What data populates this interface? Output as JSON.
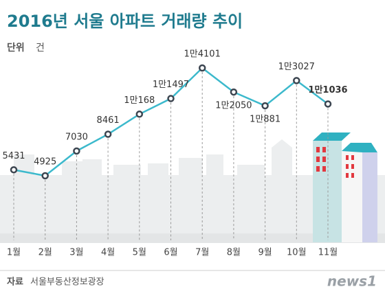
{
  "chart_data": {
    "type": "line",
    "title": "2016년 서울 아파트 거래량 추이",
    "unit_label": "단위",
    "unit": "건",
    "categories": [
      "1월",
      "2월",
      "3월",
      "4월",
      "5월",
      "6월",
      "7월",
      "8월",
      "9월",
      "10월",
      "11월"
    ],
    "values": [
      5431,
      4925,
      7030,
      8461,
      10168,
      11497,
      14101,
      12050,
      10881,
      13027,
      11036
    ],
    "value_labels": [
      "5431",
      "4925",
      "7030",
      "8461",
      "1만168",
      "1만1497",
      "1만4101",
      "1만2050",
      "1만881",
      "1만3027",
      "1만1036"
    ],
    "color": "#3cb9cc",
    "source_label": "자료",
    "source": "서울부동산정보광장",
    "brand": "news1"
  }
}
